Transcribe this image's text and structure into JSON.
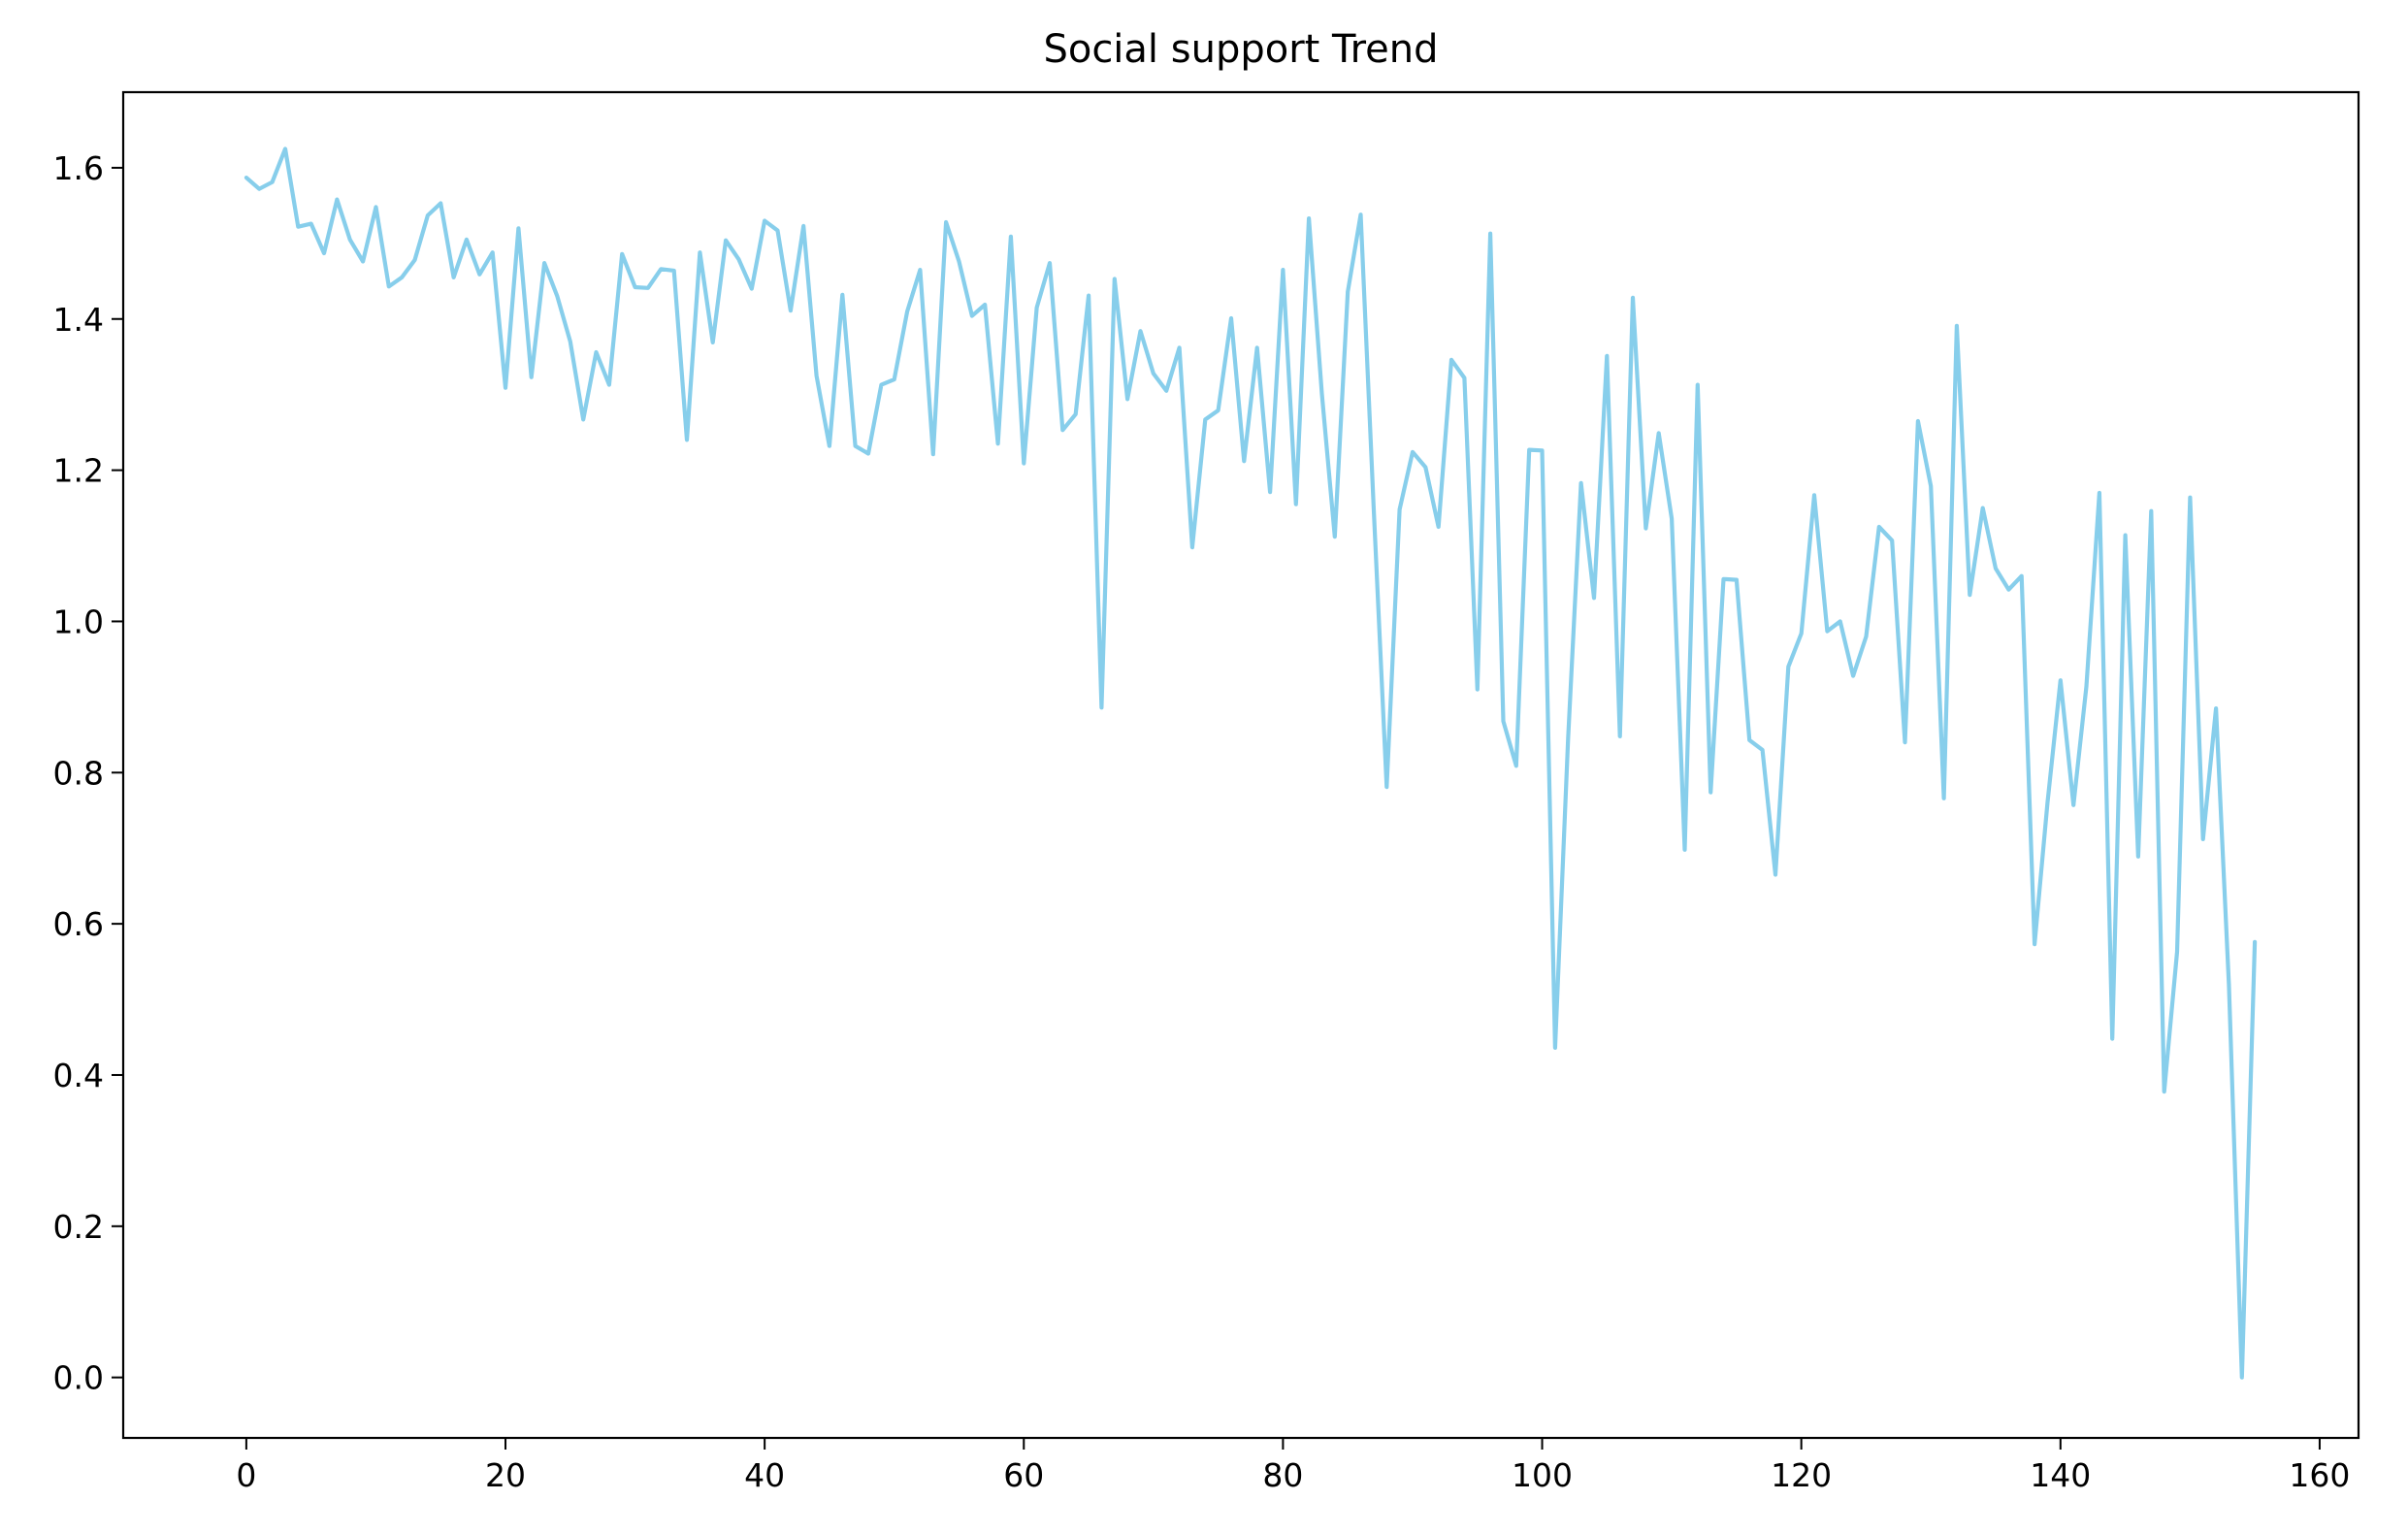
{
  "chart_data": {
    "type": "line",
    "title": "Social support Trend",
    "xlabel": "",
    "ylabel": "",
    "xlim": [
      -9.5,
      163
    ],
    "ylim": [
      -0.08,
      1.7
    ],
    "x_ticks": [
      0,
      20,
      40,
      60,
      80,
      100,
      120,
      140,
      160
    ],
    "y_ticks": [
      0.0,
      0.2,
      0.4,
      0.6,
      0.8,
      1.0,
      1.2,
      1.4,
      1.6
    ],
    "x_tick_labels": [
      "0",
      "20",
      "40",
      "60",
      "80",
      "100",
      "120",
      "140",
      "160"
    ],
    "y_tick_labels": [
      "0.0",
      "0.2",
      "0.4",
      "0.6",
      "0.8",
      "1.0",
      "1.2",
      "1.4",
      "1.6"
    ],
    "grid": false,
    "legend": "none",
    "series": [
      {
        "color": "#87ceeb",
        "x_start": 0,
        "values": [
          1.587,
          1.572,
          1.581,
          1.625,
          1.522,
          1.526,
          1.487,
          1.558,
          1.505,
          1.476,
          1.548,
          1.443,
          1.455,
          1.478,
          1.537,
          1.553,
          1.455,
          1.505,
          1.459,
          1.488,
          1.309,
          1.52,
          1.323,
          1.474,
          1.43,
          1.37,
          1.267,
          1.356,
          1.313,
          1.486,
          1.442,
          1.441,
          1.466,
          1.464,
          1.24,
          1.488,
          1.369,
          1.504,
          1.479,
          1.44,
          1.53,
          1.517,
          1.411,
          1.523,
          1.325,
          1.232,
          1.432,
          1.232,
          1.222,
          1.313,
          1.32,
          1.41,
          1.465,
          1.221,
          1.528,
          1.476,
          1.404,
          1.419,
          1.235,
          1.509,
          1.209,
          1.415,
          1.474,
          1.253,
          1.274,
          1.431,
          0.886,
          1.453,
          1.294,
          1.384,
          1.328,
          1.305,
          1.362,
          1.098,
          1.267,
          1.279,
          1.401,
          1.212,
          1.362,
          1.171,
          1.465,
          1.155,
          1.533,
          1.301,
          1.112,
          1.436,
          1.538,
          1.15,
          0.781,
          1.148,
          1.224,
          1.204,
          1.125,
          1.346,
          1.322,
          0.91,
          1.513,
          0.868,
          0.809,
          1.227,
          1.226,
          0.436,
          0.845,
          1.183,
          1.031,
          1.351,
          0.848,
          1.428,
          1.123,
          1.249,
          1.136,
          0.698,
          1.313,
          0.774,
          1.056,
          1.055,
          0.843,
          0.83,
          0.665,
          0.94,
          0.984,
          1.167,
          0.987,
          1.0,
          0.928,
          0.98,
          1.125,
          1.107,
          0.84,
          1.265,
          1.179,
          0.766,
          1.391,
          1.035,
          1.15,
          1.07,
          1.042,
          1.06,
          0.573,
          0.76,
          0.922,
          0.757,
          0.914,
          1.17,
          0.448,
          1.114,
          0.689,
          1.146,
          0.378,
          0.563,
          1.164,
          0.712,
          0.885,
          0.52,
          0.0,
          0.576
        ]
      }
    ]
  }
}
